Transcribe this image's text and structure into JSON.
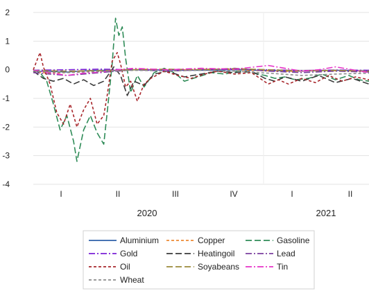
{
  "chart_data": {
    "type": "line",
    "title": "",
    "xlabel": "",
    "ylabel": "",
    "ylim": [
      -4,
      2
    ],
    "y_ticks": [
      "2",
      "1",
      "0",
      "-1",
      "-2",
      "-3",
      "-4"
    ],
    "quarter_ticks": [
      "I",
      "II",
      "III",
      "IV",
      "I",
      "II"
    ],
    "year_labels": [
      "2020",
      "2021"
    ],
    "grid": "horizontal",
    "legend_position": "bottom",
    "colors": {
      "Aluminium": "#2e5fa8",
      "Copper": "#ed8a33",
      "Gasoline": "#2e8b57",
      "Gold": "#7a1fd6",
      "Heatingoil": "#3a3a3a",
      "Lead": "#7b3f9e",
      "Oil": "#a8262b",
      "Soyabeans": "#9a8a3a",
      "Tin": "#e632c8",
      "Wheat": "#8c8c8c"
    },
    "x_note": "x = fraction of the plotted period from start of Q1 2020 to end of Q2 2021 (approximate readings)",
    "series": [
      {
        "name": "Aluminium",
        "dash": "solid",
        "points": [
          [
            0,
            -0.05
          ],
          [
            0.05,
            -0.06
          ],
          [
            0.1,
            -0.08
          ],
          [
            0.15,
            -0.04
          ],
          [
            0.2,
            -0.02
          ],
          [
            0.25,
            -0.03
          ],
          [
            0.3,
            0.0
          ],
          [
            0.4,
            -0.01
          ],
          [
            0.5,
            -0.02
          ],
          [
            0.6,
            0.0
          ],
          [
            0.7,
            -0.03
          ],
          [
            0.8,
            -0.05
          ],
          [
            0.9,
            -0.02
          ],
          [
            1.0,
            -0.04
          ]
        ]
      },
      {
        "name": "Copper",
        "dash": "short",
        "points": [
          [
            0,
            -0.08
          ],
          [
            0.05,
            -0.12
          ],
          [
            0.1,
            -0.1
          ],
          [
            0.15,
            -0.05
          ],
          [
            0.2,
            -0.06
          ],
          [
            0.25,
            0.0
          ],
          [
            0.35,
            0.02
          ],
          [
            0.45,
            0.0
          ],
          [
            0.55,
            0.03
          ],
          [
            0.65,
            -0.02
          ],
          [
            0.75,
            -0.06
          ],
          [
            0.85,
            -0.03
          ],
          [
            1.0,
            -0.05
          ]
        ]
      },
      {
        "name": "Gasoline",
        "dash": "long",
        "points": [
          [
            0,
            0.0
          ],
          [
            0.02,
            -0.1
          ],
          [
            0.04,
            -0.4
          ],
          [
            0.06,
            -1.2
          ],
          [
            0.08,
            -2.1
          ],
          [
            0.1,
            -1.6
          ],
          [
            0.12,
            -2.5
          ],
          [
            0.13,
            -3.2
          ],
          [
            0.15,
            -2.1
          ],
          [
            0.17,
            -1.6
          ],
          [
            0.19,
            -2.2
          ],
          [
            0.21,
            -2.6
          ],
          [
            0.22,
            -1.5
          ],
          [
            0.235,
            0.2
          ],
          [
            0.245,
            1.8
          ],
          [
            0.255,
            1.2
          ],
          [
            0.265,
            1.5
          ],
          [
            0.275,
            0.4
          ],
          [
            0.29,
            -0.8
          ],
          [
            0.31,
            -0.2
          ],
          [
            0.33,
            -0.6
          ],
          [
            0.36,
            -0.1
          ],
          [
            0.39,
            0.05
          ],
          [
            0.42,
            -0.1
          ],
          [
            0.45,
            -0.4
          ],
          [
            0.49,
            -0.25
          ],
          [
            0.53,
            -0.1
          ],
          [
            0.57,
            -0.15
          ],
          [
            0.61,
            -0.05
          ],
          [
            0.65,
            -0.1
          ],
          [
            0.69,
            -0.2
          ],
          [
            0.72,
            -0.3
          ],
          [
            0.75,
            -0.25
          ],
          [
            0.78,
            -0.35
          ],
          [
            0.82,
            -0.3
          ],
          [
            0.86,
            -0.15
          ],
          [
            0.9,
            -0.35
          ],
          [
            0.94,
            -0.2
          ],
          [
            0.97,
            -0.35
          ],
          [
            1.0,
            -0.4
          ]
        ]
      },
      {
        "name": "Gold",
        "dash": "dashdot",
        "points": [
          [
            0,
            -0.02
          ],
          [
            0.1,
            0.0
          ],
          [
            0.2,
            0.02
          ],
          [
            0.3,
            0.0
          ],
          [
            0.4,
            -0.02
          ],
          [
            0.5,
            0.0
          ],
          [
            0.6,
            0.02
          ],
          [
            0.7,
            0.0
          ],
          [
            0.8,
            -0.03
          ],
          [
            0.9,
            -0.01
          ],
          [
            1.0,
            -0.02
          ]
        ]
      },
      {
        "name": "Heatingoil",
        "dash": "long",
        "points": [
          [
            0,
            -0.05
          ],
          [
            0.03,
            -0.3
          ],
          [
            0.06,
            -0.4
          ],
          [
            0.09,
            -0.3
          ],
          [
            0.12,
            -0.5
          ],
          [
            0.15,
            -0.35
          ],
          [
            0.18,
            -0.55
          ],
          [
            0.21,
            -0.4
          ],
          [
            0.24,
            0.1
          ],
          [
            0.26,
            -0.2
          ],
          [
            0.28,
            -0.9
          ],
          [
            0.3,
            -0.4
          ],
          [
            0.33,
            -0.55
          ],
          [
            0.36,
            -0.15
          ],
          [
            0.4,
            -0.05
          ],
          [
            0.45,
            -0.25
          ],
          [
            0.5,
            -0.15
          ],
          [
            0.55,
            -0.05
          ],
          [
            0.6,
            -0.1
          ],
          [
            0.65,
            -0.05
          ],
          [
            0.69,
            -0.3
          ],
          [
            0.72,
            -0.4
          ],
          [
            0.75,
            -0.25
          ],
          [
            0.8,
            -0.4
          ],
          [
            0.85,
            -0.2
          ],
          [
            0.9,
            -0.45
          ],
          [
            0.95,
            -0.3
          ],
          [
            1.0,
            -0.5
          ]
        ]
      },
      {
        "name": "Lead",
        "dash": "dashdot",
        "points": [
          [
            0,
            -0.1
          ],
          [
            0.05,
            -0.15
          ],
          [
            0.1,
            -0.2
          ],
          [
            0.15,
            -0.15
          ],
          [
            0.2,
            -0.1
          ],
          [
            0.25,
            -0.05
          ],
          [
            0.3,
            0.0
          ],
          [
            0.4,
            -0.05
          ],
          [
            0.5,
            0.0
          ],
          [
            0.6,
            0.05
          ],
          [
            0.7,
            -0.05
          ],
          [
            0.8,
            -0.1
          ],
          [
            0.9,
            -0.05
          ],
          [
            1.0,
            -0.08
          ]
        ]
      },
      {
        "name": "Oil",
        "dash": "short",
        "points": [
          [
            0,
            0.0
          ],
          [
            0.02,
            0.6
          ],
          [
            0.03,
            0.1
          ],
          [
            0.05,
            -0.5
          ],
          [
            0.07,
            -1.5
          ],
          [
            0.09,
            -1.9
          ],
          [
            0.11,
            -1.2
          ],
          [
            0.13,
            -2.0
          ],
          [
            0.15,
            -1.4
          ],
          [
            0.17,
            -1.0
          ],
          [
            0.19,
            -1.9
          ],
          [
            0.21,
            -1.6
          ],
          [
            0.22,
            -0.9
          ],
          [
            0.235,
            0.3
          ],
          [
            0.25,
            0.6
          ],
          [
            0.26,
            0.2
          ],
          [
            0.275,
            -0.6
          ],
          [
            0.29,
            -0.4
          ],
          [
            0.31,
            -1.1
          ],
          [
            0.33,
            -0.5
          ],
          [
            0.35,
            -0.3
          ],
          [
            0.39,
            -0.05
          ],
          [
            0.43,
            -0.2
          ],
          [
            0.47,
            -0.3
          ],
          [
            0.51,
            -0.15
          ],
          [
            0.55,
            -0.05
          ],
          [
            0.6,
            -0.15
          ],
          [
            0.65,
            -0.1
          ],
          [
            0.7,
            -0.5
          ],
          [
            0.73,
            -0.35
          ],
          [
            0.76,
            -0.5
          ],
          [
            0.8,
            -0.3
          ],
          [
            0.84,
            -0.45
          ],
          [
            0.88,
            -0.2
          ],
          [
            0.92,
            -0.4
          ],
          [
            0.96,
            -0.25
          ],
          [
            1.0,
            -0.35
          ]
        ]
      },
      {
        "name": "Soyabeans",
        "dash": "long",
        "points": [
          [
            0,
            -0.03
          ],
          [
            0.1,
            -0.05
          ],
          [
            0.2,
            -0.03
          ],
          [
            0.3,
            0.0
          ],
          [
            0.4,
            0.02
          ],
          [
            0.5,
            0.0
          ],
          [
            0.6,
            0.04
          ],
          [
            0.7,
            0.0
          ],
          [
            0.8,
            -0.04
          ],
          [
            0.9,
            -0.02
          ],
          [
            1.0,
            -0.05
          ]
        ]
      },
      {
        "name": "Tin",
        "dash": "dashdot",
        "points": [
          [
            0,
            -0.02
          ],
          [
            0.05,
            -0.1
          ],
          [
            0.1,
            -0.2
          ],
          [
            0.15,
            -0.12
          ],
          [
            0.2,
            -0.08
          ],
          [
            0.25,
            0.0
          ],
          [
            0.3,
            0.05
          ],
          [
            0.4,
            0.0
          ],
          [
            0.5,
            0.05
          ],
          [
            0.6,
            0.02
          ],
          [
            0.7,
            0.15
          ],
          [
            0.75,
            0.05
          ],
          [
            0.8,
            -0.05
          ],
          [
            0.85,
            0.0
          ],
          [
            0.9,
            0.1
          ],
          [
            1.0,
            -0.1
          ]
        ]
      },
      {
        "name": "Wheat",
        "dash": "short",
        "points": [
          [
            0,
            -0.05
          ],
          [
            0.1,
            -0.1
          ],
          [
            0.2,
            -0.06
          ],
          [
            0.3,
            -0.02
          ],
          [
            0.4,
            -0.04
          ],
          [
            0.5,
            -0.02
          ],
          [
            0.6,
            -0.05
          ],
          [
            0.7,
            -0.12
          ],
          [
            0.8,
            -0.2
          ],
          [
            0.9,
            -0.15
          ],
          [
            1.0,
            -0.12
          ]
        ]
      }
    ]
  }
}
